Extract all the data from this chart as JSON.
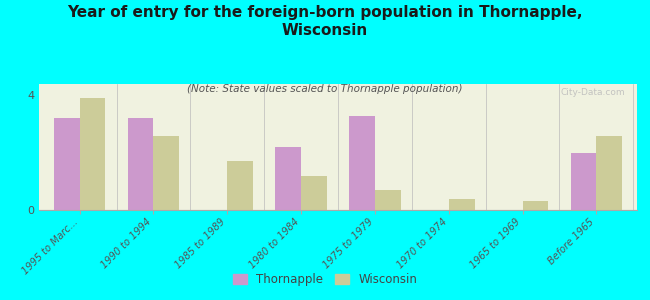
{
  "title": "Year of entry for the foreign-born population in Thornapple,\nWisconsin",
  "subtitle": "(Note: State values scaled to Thornapple population)",
  "categories": [
    "1995 to Marc...",
    "1990 to 1994",
    "1985 to 1989",
    "1980 to 1984",
    "1975 to 1979",
    "1970 to 1974",
    "1965 to 1969",
    "Before 1965"
  ],
  "thornapple": [
    3.2,
    3.2,
    0.0,
    2.2,
    3.3,
    0.0,
    0.0,
    2.0
  ],
  "wisconsin": [
    3.9,
    2.6,
    1.7,
    1.2,
    0.7,
    0.4,
    0.3,
    2.6
  ],
  "thornapple_color": "#cc99cc",
  "wisconsin_color": "#cccc99",
  "background_color": "#00ffff",
  "plot_bg_color": "#f0f2e0",
  "ylim": [
    0,
    4.4
  ],
  "yticks": [
    0,
    4
  ],
  "bar_width": 0.35,
  "title_fontsize": 11,
  "subtitle_fontsize": 7.5,
  "tick_fontsize": 7,
  "legend_labels": [
    "Thornapple",
    "Wisconsin"
  ],
  "watermark": "City-Data.com"
}
